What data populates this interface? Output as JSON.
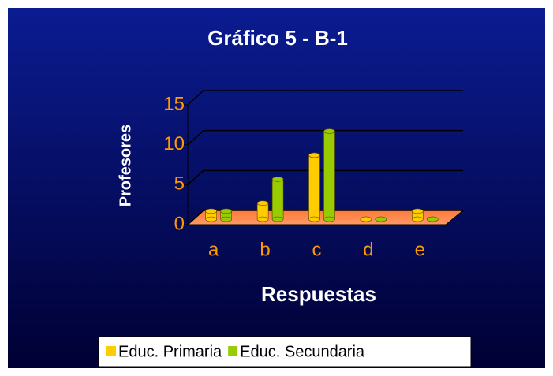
{
  "chart_data": {
    "type": "bar3d",
    "title": "Gráfico 5 - B-1",
    "x_label": "Respuestas",
    "y_label": "Profesores",
    "categories": [
      "a",
      "b",
      "c",
      "d",
      "e"
    ],
    "series": [
      {
        "name": "Educ. Primaria",
        "color": "#ffcc00",
        "values": [
          1,
          2,
          8,
          0,
          1
        ]
      },
      {
        "name": "Educ. Secundaria",
        "color": "#99cc00",
        "values": [
          1,
          5,
          11,
          0,
          0
        ]
      }
    ],
    "ylim": [
      0,
      15
    ],
    "yticks": [
      0,
      5,
      10,
      15
    ],
    "grid": true,
    "legend": "bottom"
  }
}
